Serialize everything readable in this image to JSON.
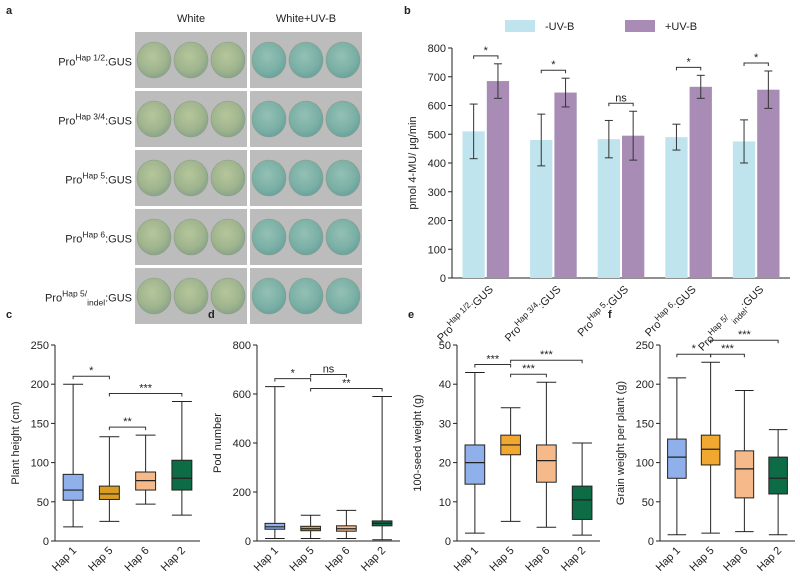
{
  "panel_a": {
    "label": "a",
    "columns": [
      "White",
      "White+UV-B"
    ],
    "rows": [
      {
        "pre": "Pro",
        "sup": "Hap 1/2",
        "post": ":GUS"
      },
      {
        "pre": "Pro",
        "sup": "Hap 3/4",
        "post": ":GUS"
      },
      {
        "pre": "Pro",
        "sup": "Hap 5",
        "post": ":GUS"
      },
      {
        "pre": "Pro",
        "sup": "Hap 6",
        "post": ":GUS"
      },
      {
        "pre": "Pro",
        "sup": "Hap 5/",
        "sub": "indel",
        "post": ":GUS"
      }
    ]
  },
  "chart_data": [
    {
      "type": "bar",
      "label": "b",
      "ylabel": "pmol 4-MU/ μg/min",
      "categories": [
        {
          "pre": "Pro",
          "sup": "Hap 1/2",
          "post": ":GUS"
        },
        {
          "pre": "Pro",
          "sup": "Hap 3/4",
          "post": ":GUS"
        },
        {
          "pre": "Pro",
          "sup": "Hap 5",
          "post": ":GUS"
        },
        {
          "pre": "Pro",
          "sup": "Hap 6",
          "post": ":GUS"
        },
        {
          "pre": "Pro",
          "sup": "Hap 5/",
          "sub": "indel",
          "post": ":GUS"
        }
      ],
      "series": [
        {
          "name": "-UV-B",
          "color": "#bfe4ee",
          "values": [
            510,
            480,
            483,
            490,
            475
          ],
          "errors": [
            95,
            90,
            65,
            45,
            75
          ]
        },
        {
          "name": "+UV-B",
          "color": "#a88cb6",
          "values": [
            685,
            645,
            495,
            665,
            655
          ],
          "errors": [
            60,
            50,
            85,
            40,
            65
          ]
        }
      ],
      "significance": [
        "*",
        "*",
        "ns",
        "*",
        "*"
      ],
      "ylim": [
        0,
        800
      ],
      "yticks": [
        0,
        100,
        200,
        300,
        400,
        500,
        600,
        700,
        800
      ],
      "legend": "top"
    },
    {
      "type": "box",
      "label": "c",
      "ylabel": "Plant height (cm)",
      "categories": [
        "Hap 1",
        "Hap 5",
        "Hap 6",
        "Hap 2"
      ],
      "colors": [
        "#8fb0ea",
        "#d99d22",
        "#f5b98a",
        "#0d6b46"
      ],
      "stats": [
        {
          "min": 18,
          "q1": 52,
          "median": 65,
          "q3": 85,
          "max": 200
        },
        {
          "min": 25,
          "q1": 53,
          "median": 60,
          "q3": 70,
          "max": 133
        },
        {
          "min": 47,
          "q1": 65,
          "median": 77,
          "q3": 88,
          "max": 135
        },
        {
          "min": 33,
          "q1": 65,
          "median": 80,
          "q3": 103,
          "max": 178
        }
      ],
      "annotations": [
        {
          "between": [
            "Hap 1",
            "Hap 5"
          ],
          "text": "*"
        },
        {
          "between": [
            "Hap 5",
            "Hap 6"
          ],
          "text": "**"
        },
        {
          "between": [
            "Hap 5",
            "Hap 2"
          ],
          "text": "***"
        }
      ],
      "ylim": [
        0,
        250
      ],
      "yticks": [
        0,
        50,
        100,
        150,
        200,
        250
      ]
    },
    {
      "type": "box",
      "label": "d",
      "ylabel": "Pod number",
      "categories": [
        "Hap 1",
        "Hap 5",
        "Hap 6",
        "Hap 2"
      ],
      "colors": [
        "#8fb0ea",
        "#d99d22",
        "#f5b98a",
        "#0d6b46"
      ],
      "stats": [
        {
          "min": 10,
          "q1": 48,
          "median": 58,
          "q3": 72,
          "max": 630
        },
        {
          "min": 10,
          "q1": 42,
          "median": 50,
          "q3": 60,
          "max": 105
        },
        {
          "min": 10,
          "q1": 40,
          "median": 50,
          "q3": 62,
          "max": 125
        },
        {
          "min": 5,
          "q1": 62,
          "median": 72,
          "q3": 82,
          "max": 590
        }
      ],
      "annotations": [
        {
          "between": [
            "Hap 1",
            "Hap 5"
          ],
          "text": "*"
        },
        {
          "between": [
            "Hap 5",
            "Hap 2"
          ],
          "text": "**"
        },
        {
          "between": [
            "Hap 5",
            "Hap 6"
          ],
          "text": "ns"
        }
      ],
      "ylim": [
        0,
        800
      ],
      "yticks": [
        0,
        200,
        400,
        600,
        800
      ]
    },
    {
      "type": "box",
      "label": "e",
      "ylabel": "100-seed weight (g)",
      "categories": [
        "Hap 1",
        "Hap 5",
        "Hap 6",
        "Hap 2"
      ],
      "colors": [
        "#8fb0ea",
        "#f0a830",
        "#f5b98a",
        "#0d6b46"
      ],
      "stats": [
        {
          "min": 2,
          "q1": 14.5,
          "median": 20,
          "q3": 24.5,
          "max": 43
        },
        {
          "min": 5,
          "q1": 22,
          "median": 24.5,
          "q3": 27,
          "max": 34
        },
        {
          "min": 3.5,
          "q1": 15,
          "median": 20.5,
          "q3": 24.5,
          "max": 40.5
        },
        {
          "min": 1.5,
          "q1": 5.5,
          "median": 10.5,
          "q3": 14,
          "max": 25
        }
      ],
      "annotations": [
        {
          "between": [
            "Hap 1",
            "Hap 5"
          ],
          "text": "***"
        },
        {
          "between": [
            "Hap 5",
            "Hap 6"
          ],
          "text": "***"
        },
        {
          "between": [
            "Hap 5",
            "Hap 2"
          ],
          "text": "***"
        }
      ],
      "ylim": [
        0,
        50
      ],
      "yticks": [
        0,
        10,
        20,
        30,
        40,
        50
      ]
    },
    {
      "type": "box",
      "label": "f",
      "ylabel": "Grain weight per plant (g)",
      "categories": [
        "Hap 1",
        "Hap 5",
        "Hap 6",
        "Hap 2"
      ],
      "colors": [
        "#8fb0ea",
        "#f0a830",
        "#f5b98a",
        "#0d6b46"
      ],
      "stats": [
        {
          "min": 8,
          "q1": 80,
          "median": 107,
          "q3": 130,
          "max": 208
        },
        {
          "min": 10,
          "q1": 97,
          "median": 117,
          "q3": 135,
          "max": 228
        },
        {
          "min": 12,
          "q1": 55,
          "median": 92,
          "q3": 115,
          "max": 192
        },
        {
          "min": 8,
          "q1": 60,
          "median": 80,
          "q3": 107,
          "max": 142
        }
      ],
      "annotations": [
        {
          "between": [
            "Hap 1",
            "Hap 5"
          ],
          "text": "*"
        },
        {
          "between": [
            "Hap 5",
            "Hap 6"
          ],
          "text": "***"
        },
        {
          "between": [
            "Hap 5",
            "Hap 2"
          ],
          "text": "***"
        }
      ],
      "ylim": [
        0,
        250
      ],
      "yticks": [
        0,
        50,
        100,
        150,
        200,
        250
      ]
    }
  ]
}
